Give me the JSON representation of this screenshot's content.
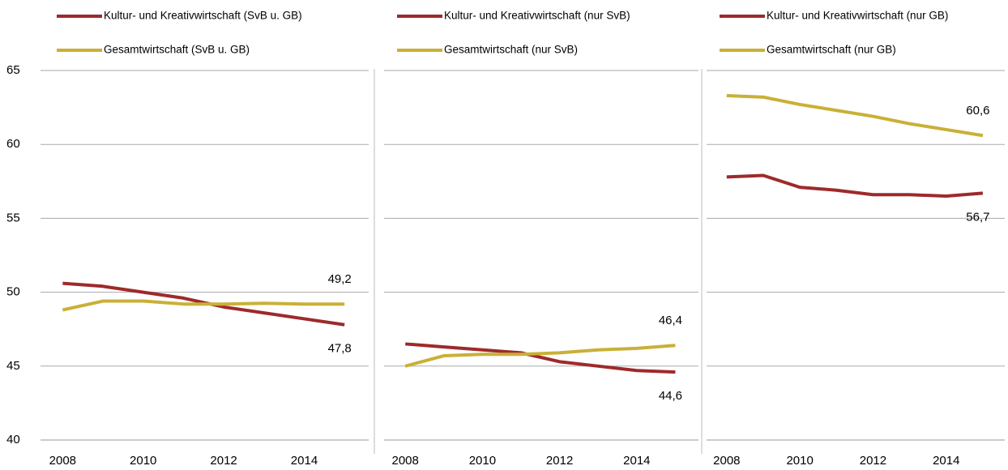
{
  "chart_data": [
    {
      "type": "line",
      "x": [
        2008,
        2009,
        2010,
        2011,
        2012,
        2013,
        2014,
        2015
      ],
      "xlim": [
        2007.45,
        2015.6
      ],
      "xticks": [
        2008,
        2010,
        2012,
        2014
      ],
      "ylim": [
        40,
        65
      ],
      "yticks": [
        40,
        45,
        50,
        55,
        60,
        65
      ],
      "grid": true,
      "series": [
        {
          "name": "Kultur- und Kreativwirtschaft (SvB u. GB)",
          "color": "#9e2a2b",
          "values": [
            50.6,
            50.4,
            50.0,
            49.6,
            49.0,
            48.6,
            48.2,
            47.8
          ],
          "value_labels": [
            null,
            null,
            null,
            null,
            null,
            null,
            null,
            "47,8"
          ]
        },
        {
          "name": "Gesamtwirtschaft (SvB u. GB)",
          "color": "#c9b037",
          "values": [
            48.8,
            49.4,
            49.4,
            49.2,
            49.2,
            49.25,
            49.2,
            49.2
          ],
          "value_labels": [
            null,
            null,
            null,
            null,
            null,
            null,
            null,
            "49,2"
          ]
        }
      ]
    },
    {
      "type": "line",
      "x": [
        2008,
        2009,
        2010,
        2011,
        2012,
        2013,
        2014,
        2015
      ],
      "xlim": [
        2007.45,
        2015.6
      ],
      "xticks": [
        2008,
        2010,
        2012,
        2014
      ],
      "ylim": [
        40,
        65
      ],
      "yticks": [
        40,
        45,
        50,
        55,
        60,
        65
      ],
      "grid": true,
      "series": [
        {
          "name": "Kultur- und Kreativwirtschaft (nur SvB)",
          "color": "#9e2a2b",
          "values": [
            46.5,
            46.3,
            46.1,
            45.9,
            45.3,
            45.0,
            44.7,
            44.6
          ],
          "value_labels": [
            null,
            null,
            null,
            null,
            null,
            null,
            null,
            "44,6"
          ]
        },
        {
          "name": "Gesamtwirtschaft (nur SvB)",
          "color": "#c9b037",
          "values": [
            45.0,
            45.7,
            45.8,
            45.8,
            45.9,
            46.1,
            46.2,
            46.4
          ],
          "value_labels": [
            null,
            null,
            null,
            null,
            null,
            null,
            null,
            "46,4"
          ]
        }
      ]
    },
    {
      "type": "line",
      "x": [
        2008,
        2009,
        2010,
        2011,
        2012,
        2013,
        2014,
        2015
      ],
      "xlim": [
        2007.45,
        2015.6
      ],
      "xticks": [
        2008,
        2010,
        2012,
        2014
      ],
      "ylim": [
        40,
        65
      ],
      "yticks": [
        40,
        45,
        50,
        55,
        60,
        65
      ],
      "grid": true,
      "series": [
        {
          "name": "Kultur- und Kreativwirtschaft (nur GB)",
          "color": "#9e2a2b",
          "values": [
            57.8,
            57.9,
            57.1,
            56.9,
            56.6,
            56.6,
            56.5,
            56.7
          ],
          "value_labels": [
            null,
            null,
            null,
            null,
            null,
            null,
            null,
            "56,7"
          ]
        },
        {
          "name": "Gesamtwirtschaft (nur GB)",
          "color": "#c9b037",
          "values": [
            63.3,
            63.2,
            62.7,
            62.3,
            61.9,
            61.4,
            61.0,
            60.6
          ],
          "value_labels": [
            null,
            null,
            null,
            null,
            null,
            null,
            null,
            "60,6"
          ]
        }
      ]
    }
  ]
}
